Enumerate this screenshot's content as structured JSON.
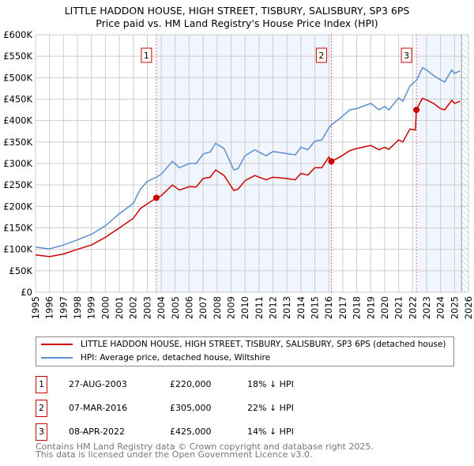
{
  "chart_data": {
    "type": "line",
    "title": "LITTLE HADDON HOUSE, HIGH STREET, TISBURY, SALISBURY, SP3 6PS",
    "subtitle": "Price paid vs. HM Land Registry's House Price Index (HPI)",
    "xlim": [
      1995,
      2026
    ],
    "ylim": [
      0,
      600000
    ],
    "x_ticks": [
      "1995",
      "1996",
      "1997",
      "1998",
      "1999",
      "2000",
      "2001",
      "2002",
      "2003",
      "2004",
      "2005",
      "2006",
      "2007",
      "2008",
      "2009",
      "2010",
      "2011",
      "2012",
      "2013",
      "2014",
      "2015",
      "2016",
      "2017",
      "2018",
      "2019",
      "2020",
      "2021",
      "2022",
      "2023",
      "2024",
      "2025",
      "2026"
    ],
    "y_ticks": [
      {
        "v": 0,
        "label": "£0"
      },
      {
        "v": 50000,
        "label": "£50K"
      },
      {
        "v": 100000,
        "label": "£100K"
      },
      {
        "v": 150000,
        "label": "£150K"
      },
      {
        "v": 200000,
        "label": "£200K"
      },
      {
        "v": 250000,
        "label": "£250K"
      },
      {
        "v": 300000,
        "label": "£300K"
      },
      {
        "v": 350000,
        "label": "£350K"
      },
      {
        "v": 400000,
        "label": "£400K"
      },
      {
        "v": 450000,
        "label": "£450K"
      },
      {
        "v": 500000,
        "label": "£500K"
      },
      {
        "v": 550000,
        "label": "£550K"
      },
      {
        "v": 600000,
        "label": "£600K"
      }
    ],
    "grid": true,
    "series": [
      {
        "name": "LITTLE HADDON HOUSE, HIGH STREET, TISBURY, SALISBURY, SP3 6PS (detached house)",
        "color": "#cc0000",
        "x": [
          1995,
          1996,
          1997,
          1998,
          1999,
          2000,
          2001,
          2002,
          2002.5,
          2003.65,
          2004,
          2004.8,
          2005.3,
          2006,
          2006.5,
          2007,
          2007.5,
          2007.9,
          2008.5,
          2009.2,
          2009.5,
          2010,
          2010.7,
          2011.5,
          2012,
          2013,
          2013.6,
          2014,
          2014.5,
          2015,
          2015.5,
          2016,
          2016.18,
          2016.8,
          2017.5,
          2018,
          2019,
          2019.6,
          2020,
          2020.3,
          2021,
          2021.3,
          2021.8,
          2022.2,
          2022.27,
          2022.7,
          2023,
          2023.5,
          2024,
          2024.3,
          2024.8,
          2025,
          2025.4
        ],
        "y": [
          87000,
          83000,
          89000,
          100000,
          110000,
          128000,
          150000,
          172000,
          195000,
          220000,
          225000,
          250000,
          238000,
          246000,
          245000,
          265000,
          268000,
          285000,
          272000,
          237000,
          240000,
          260000,
          272000,
          262000,
          268000,
          265000,
          262000,
          277000,
          273000,
          290000,
          290000,
          315000,
          305000,
          315000,
          330000,
          335000,
          342000,
          332000,
          338000,
          333000,
          355000,
          350000,
          380000,
          378000,
          425000,
          452000,
          448000,
          440000,
          428000,
          425000,
          447000,
          440000,
          445000
        ]
      },
      {
        "name": "HPI: Average price, detached house, Wiltshire",
        "color": "#5b8fd0",
        "x": [
          1995,
          1996,
          1997,
          1998,
          1999,
          2000,
          2001,
          2002,
          2002.5,
          2003,
          2003.65,
          2004,
          2004.8,
          2005.3,
          2006,
          2006.5,
          2007,
          2007.5,
          2007.9,
          2008.5,
          2009.2,
          2009.5,
          2010,
          2010.7,
          2011.5,
          2012,
          2013,
          2013.6,
          2014,
          2014.5,
          2015,
          2015.5,
          2016,
          2016.18,
          2016.8,
          2017.5,
          2018,
          2019,
          2019.6,
          2020,
          2020.3,
          2021,
          2021.3,
          2021.8,
          2022.3,
          2022.7,
          2023,
          2023.5,
          2024,
          2024.3,
          2024.8,
          2025,
          2025.4
        ],
        "y": [
          105000,
          101000,
          110000,
          122000,
          135000,
          155000,
          183000,
          207000,
          240000,
          258000,
          268000,
          275000,
          305000,
          290000,
          300000,
          300000,
          322000,
          327000,
          347000,
          335000,
          285000,
          288000,
          318000,
          332000,
          318000,
          328000,
          323000,
          320000,
          338000,
          332000,
          352000,
          355000,
          383000,
          390000,
          405000,
          425000,
          428000,
          440000,
          425000,
          433000,
          425000,
          453000,
          445000,
          480000,
          495000,
          523000,
          518000,
          505000,
          495000,
          490000,
          518000,
          510000,
          516000
        ]
      }
    ],
    "sales": [
      {
        "id": "1",
        "x": 2003.65,
        "y": 220000,
        "date": "27-AUG-2003",
        "price": "£220,000",
        "hpi": "18% ↓ HPI"
      },
      {
        "id": "2",
        "x": 2016.18,
        "y": 305000,
        "date": "07-MAR-2016",
        "price": "£305,000",
        "hpi": "22% ↓ HPI"
      },
      {
        "id": "3",
        "x": 2022.27,
        "y": 425000,
        "date": "08-APR-2022",
        "price": "£425,000",
        "hpi": "14% ↓ HPI"
      }
    ],
    "shaded_ranges": [
      [
        2003.65,
        2016.18
      ],
      [
        2022.27,
        2025.5
      ]
    ],
    "forecast_start": 2025.5,
    "legend": "bottom"
  },
  "footer": {
    "line1": "Contains HM Land Registry data © Crown copyright and database right 2025.",
    "line2": "This data is licensed under the Open Government Licence v3.0."
  }
}
